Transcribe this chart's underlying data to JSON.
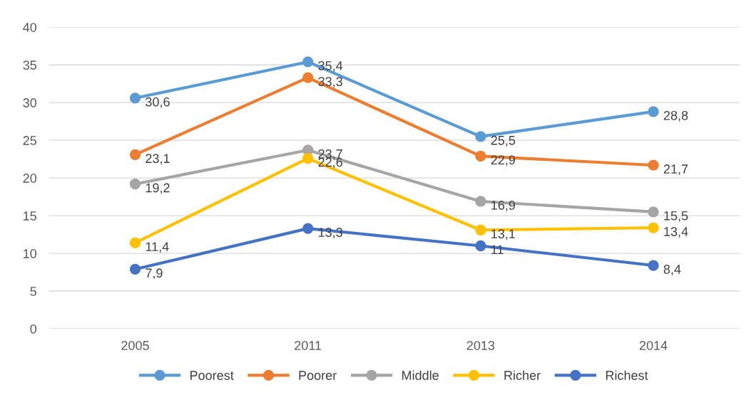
{
  "chart_data": {
    "type": "line",
    "categories": [
      "2005",
      "2011",
      "2013",
      "2014"
    ],
    "series": [
      {
        "name": "Poorest",
        "color": "#5b9bd5",
        "values": [
          30.6,
          35.4,
          25.5,
          28.8
        ],
        "value_labels": [
          "30,6",
          "35,4",
          "25,5",
          "28,8"
        ]
      },
      {
        "name": "Poorer",
        "color": "#ed7d31",
        "values": [
          23.1,
          33.3,
          22.9,
          21.7
        ],
        "value_labels": [
          "23,1",
          "33,3",
          "22,9",
          "21,7"
        ]
      },
      {
        "name": "Middle",
        "color": "#a5a5a5",
        "values": [
          19.2,
          23.7,
          16.9,
          15.5
        ],
        "value_labels": [
          "19,2",
          "23,7",
          "16,9",
          "15,5"
        ]
      },
      {
        "name": "Richer",
        "color": "#ffc000",
        "values": [
          11.4,
          22.6,
          13.1,
          13.4
        ],
        "value_labels": [
          "11,4",
          "22,6",
          "13,1",
          "13,4"
        ]
      },
      {
        "name": "Richest",
        "color": "#4472c4",
        "values": [
          7.9,
          13.3,
          11,
          8.4
        ],
        "value_labels": [
          "7,9",
          "13,3",
          "11",
          "8,4"
        ]
      }
    ],
    "ylim": [
      0,
      40
    ],
    "yticks": [
      0,
      5,
      10,
      15,
      20,
      25,
      30,
      35,
      40
    ],
    "grid": "y",
    "legend": "bottom",
    "marker": "circle",
    "line_style": "solid"
  }
}
